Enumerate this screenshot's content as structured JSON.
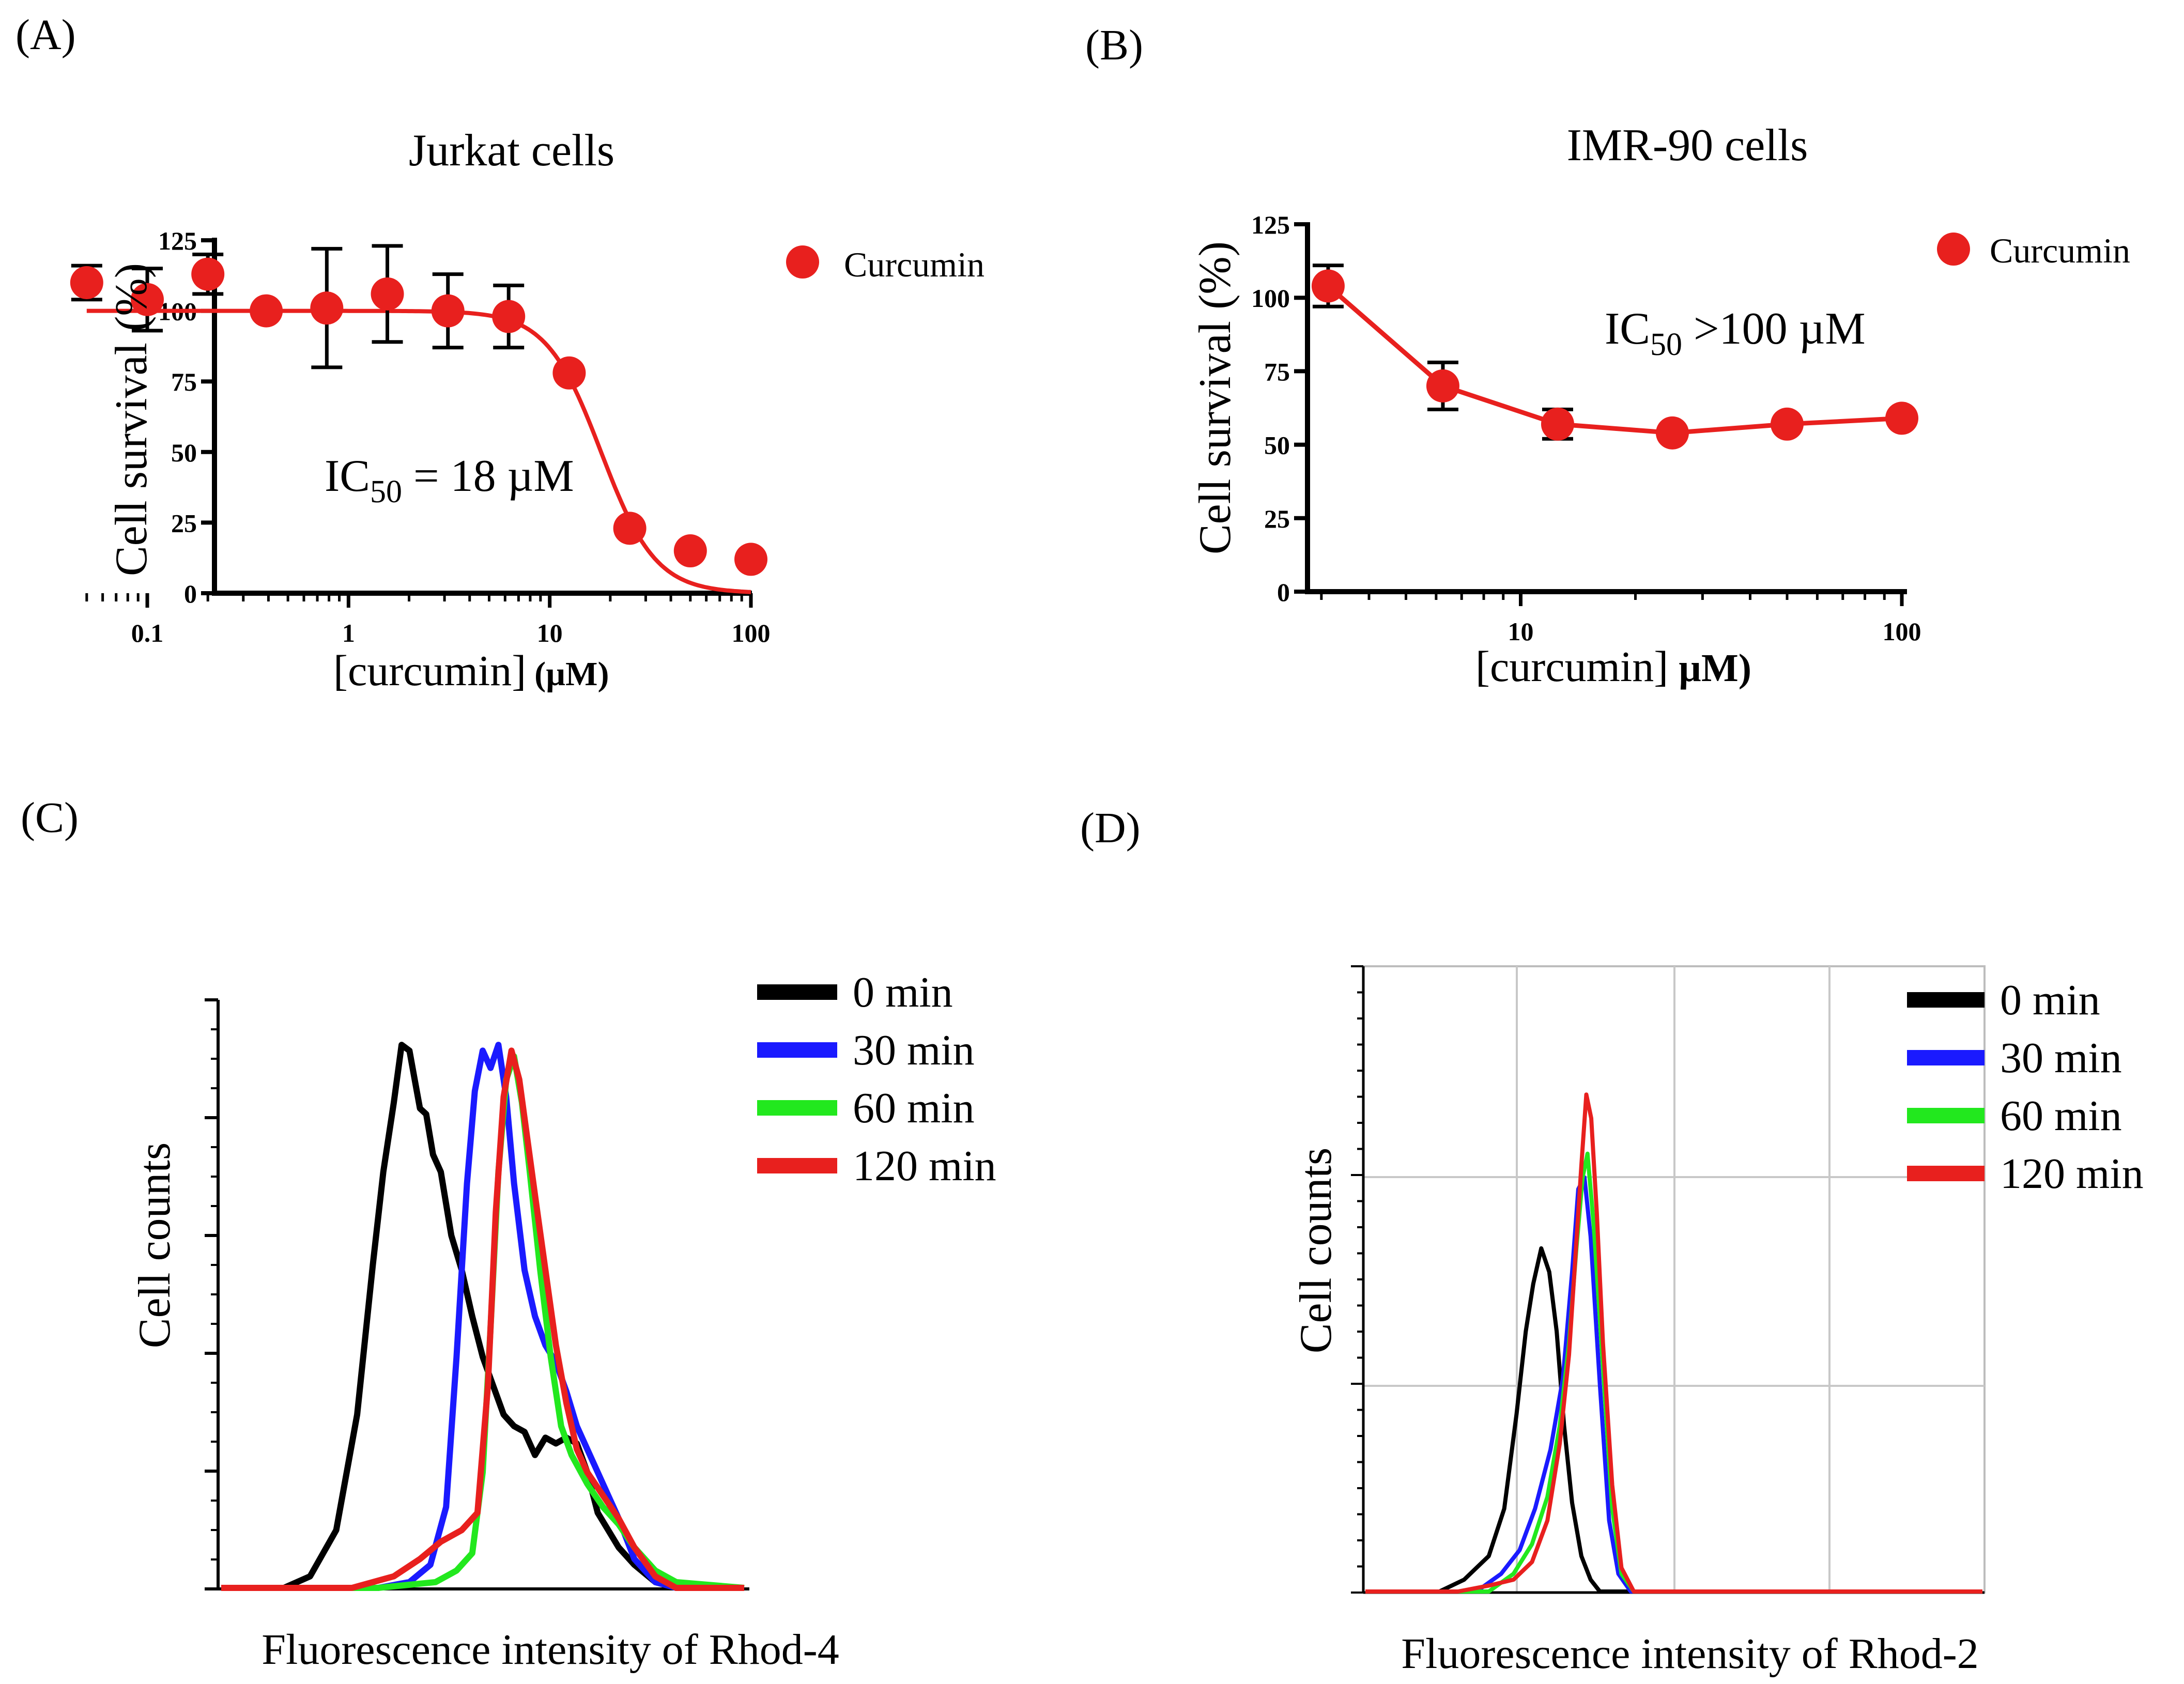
{
  "panels": {
    "a": {
      "label": "(A)"
    },
    "b": {
      "label": "(B)"
    },
    "c": {
      "label": "(C)"
    },
    "d": {
      "label": "(D)"
    }
  },
  "chart_data": [
    {
      "type": "scatter",
      "panel": "A",
      "title": "Jurkat cells",
      "xlabel": "[curcumin] (µM)",
      "xlabel_main": "[curcumin]",
      "xlabel_unit": "(µM)",
      "ylabel": "Cell survival (%)",
      "xscale": "log",
      "xlim": [
        0.045,
        100
      ],
      "ylim": [
        0,
        125
      ],
      "xticks": [
        0.1,
        1,
        10,
        100
      ],
      "xticklabels": [
        "0.1",
        "1",
        "10",
        "100"
      ],
      "yticks": [
        0,
        25,
        50,
        75,
        100,
        125
      ],
      "yticklabels": [
        "0",
        "25",
        "50",
        "75",
        "100",
        "125"
      ],
      "annotation": {
        "text": "IC",
        "sub": "50",
        "rest": " = 18 µM"
      },
      "legend": [
        "Curcumin"
      ],
      "series": [
        {
          "name": "Curcumin",
          "color": "#e8201e",
          "x": [
            0.05,
            0.1,
            0.2,
            0.39,
            0.78,
            1.56,
            3.12,
            6.25,
            12.5,
            25,
            50,
            100
          ],
          "y": [
            110,
            104,
            113,
            100,
            101,
            106,
            100,
            98,
            78,
            23,
            15,
            12
          ],
          "err": [
            6,
            11,
            7,
            0,
            21,
            17,
            13,
            11,
            0,
            0,
            0,
            0
          ],
          "fit": {
            "top": 100,
            "bottom": 0,
            "ic50": 18,
            "hill": 3.2
          }
        }
      ]
    },
    {
      "type": "line",
      "panel": "B",
      "title": "IMR-90 cells",
      "xlabel": "[curcumin] (µM)",
      "xlabel_main": "[curcumin]",
      "xlabel_unit": "µM)",
      "ylabel": "Cell survival (%)",
      "xscale": "log",
      "xlim": [
        2.9,
        100
      ],
      "ylim": [
        0,
        125
      ],
      "xticks": [
        10,
        100
      ],
      "xticklabels": [
        "10",
        "100"
      ],
      "yticks": [
        0,
        25,
        50,
        75,
        100,
        125
      ],
      "yticklabels": [
        "0",
        "25",
        "50",
        "75",
        "100",
        "125"
      ],
      "annotation": {
        "text": "IC",
        "sub": "50",
        "rest": " >100 µM"
      },
      "legend": [
        "Curcumin"
      ],
      "series": [
        {
          "name": "Curcumin",
          "color": "#e8201e",
          "x": [
            3.125,
            6.25,
            12.5,
            25,
            50,
            100
          ],
          "y": [
            104,
            70,
            57,
            54,
            57,
            59
          ],
          "err": [
            7,
            8,
            5,
            0,
            0,
            0
          ]
        }
      ]
    },
    {
      "type": "line",
      "panel": "C",
      "title": "",
      "xlabel": "Fluorescence intensity of Rhod-4",
      "ylabel": "Cell counts",
      "xlim": [
        0,
        1000
      ],
      "ylim": [
        0,
        100
      ],
      "grid": false,
      "legend": [
        "0 min",
        "30 min",
        "60 min",
        "120 min"
      ],
      "series": [
        {
          "name": "0 min",
          "color": "#000000",
          "x": [
            0,
            120,
            170,
            220,
            260,
            290,
            310,
            330,
            345,
            360,
            370,
            380,
            392,
            405,
            420,
            440,
            460,
            480,
            500,
            520,
            540,
            560,
            580,
            600,
            620,
            640,
            660,
            680,
            700,
            720,
            740,
            760,
            790,
            830,
            870,
            1000
          ],
          "y": [
            0,
            0,
            2,
            10,
            30,
            56,
            72,
            84,
            94,
            93,
            88,
            83,
            82,
            75,
            72,
            61,
            55,
            47,
            40,
            35,
            30,
            28,
            27,
            23,
            26,
            25,
            26,
            25,
            20,
            13,
            10,
            7,
            4,
            1,
            0,
            0
          ]
        },
        {
          "name": "30 min",
          "color": "#1a1aff",
          "x": [
            0,
            300,
            360,
            400,
            430,
            450,
            470,
            485,
            500,
            515,
            530,
            545,
            560,
            580,
            600,
            620,
            640,
            660,
            680,
            700,
            730,
            760,
            790,
            830,
            870,
            1000
          ],
          "y": [
            0,
            0,
            1,
            4,
            14,
            40,
            70,
            86,
            93,
            90,
            94,
            85,
            70,
            55,
            47,
            42,
            39,
            34,
            28,
            24,
            18,
            12,
            5,
            1,
            0,
            0
          ]
        },
        {
          "name": "60 min",
          "color": "#22e81e",
          "x": [
            0,
            300,
            410,
            450,
            480,
            500,
            515,
            530,
            545,
            560,
            575,
            590,
            610,
            630,
            650,
            670,
            700,
            730,
            760,
            790,
            830,
            870,
            1000
          ],
          "y": [
            0,
            0,
            1,
            3,
            6,
            20,
            45,
            72,
            88,
            92,
            84,
            72,
            55,
            40,
            28,
            23,
            18,
            14,
            11,
            7,
            3,
            1,
            0
          ]
        },
        {
          "name": "120 min",
          "color": "#e8201e",
          "x": [
            0,
            250,
            330,
            380,
            420,
            460,
            490,
            510,
            525,
            540,
            555,
            570,
            585,
            600,
            620,
            640,
            660,
            680,
            700,
            730,
            760,
            790,
            830,
            870,
            1000
          ],
          "y": [
            0,
            0,
            2,
            5,
            8,
            10,
            13,
            35,
            65,
            85,
            93,
            88,
            78,
            68,
            55,
            42,
            32,
            24,
            20,
            16,
            12,
            7,
            2,
            0,
            0
          ]
        }
      ]
    },
    {
      "type": "line",
      "panel": "D",
      "title": "",
      "xlabel": "Fluorescence intensity of Rhod-2",
      "ylabel": "Cell counts",
      "xlim": [
        0,
        1000
      ],
      "ylim": [
        0,
        100
      ],
      "grid": true,
      "legend": [
        "0 min",
        "30 min",
        "60 min",
        "120 min"
      ],
      "series": [
        {
          "name": "0 min",
          "color": "#000000",
          "x": [
            0,
            120,
            160,
            200,
            225,
            245,
            260,
            272,
            285,
            298,
            310,
            322,
            335,
            350,
            365,
            380,
            400,
            1000
          ],
          "y": [
            0,
            0,
            2,
            6,
            14,
            30,
            44,
            52,
            58,
            54,
            44,
            28,
            15,
            6,
            2,
            0,
            0,
            0
          ]
        },
        {
          "name": "30 min",
          "color": "#1a1aff",
          "x": [
            0,
            180,
            220,
            250,
            275,
            300,
            320,
            335,
            345,
            355,
            365,
            380,
            395,
            410,
            430,
            1000
          ],
          "y": [
            0,
            0,
            3,
            7,
            14,
            24,
            36,
            54,
            68,
            70,
            60,
            35,
            12,
            3,
            0,
            0
          ]
        },
        {
          "name": "60 min",
          "color": "#22e81e",
          "x": [
            0,
            200,
            240,
            270,
            295,
            315,
            330,
            342,
            352,
            360,
            370,
            385,
            400,
            415,
            435,
            1000
          ],
          "y": [
            0,
            0,
            3,
            8,
            16,
            28,
            42,
            58,
            70,
            74,
            62,
            38,
            14,
            3,
            0,
            0
          ]
        },
        {
          "name": "120 min",
          "color": "#e8201e",
          "x": [
            0,
            150,
            200,
            240,
            270,
            295,
            315,
            330,
            340,
            350,
            358,
            366,
            375,
            385,
            400,
            415,
            435,
            1000
          ],
          "y": [
            0,
            0,
            1,
            2,
            5,
            12,
            25,
            40,
            56,
            72,
            84,
            80,
            64,
            42,
            18,
            4,
            0,
            0
          ]
        }
      ]
    }
  ]
}
